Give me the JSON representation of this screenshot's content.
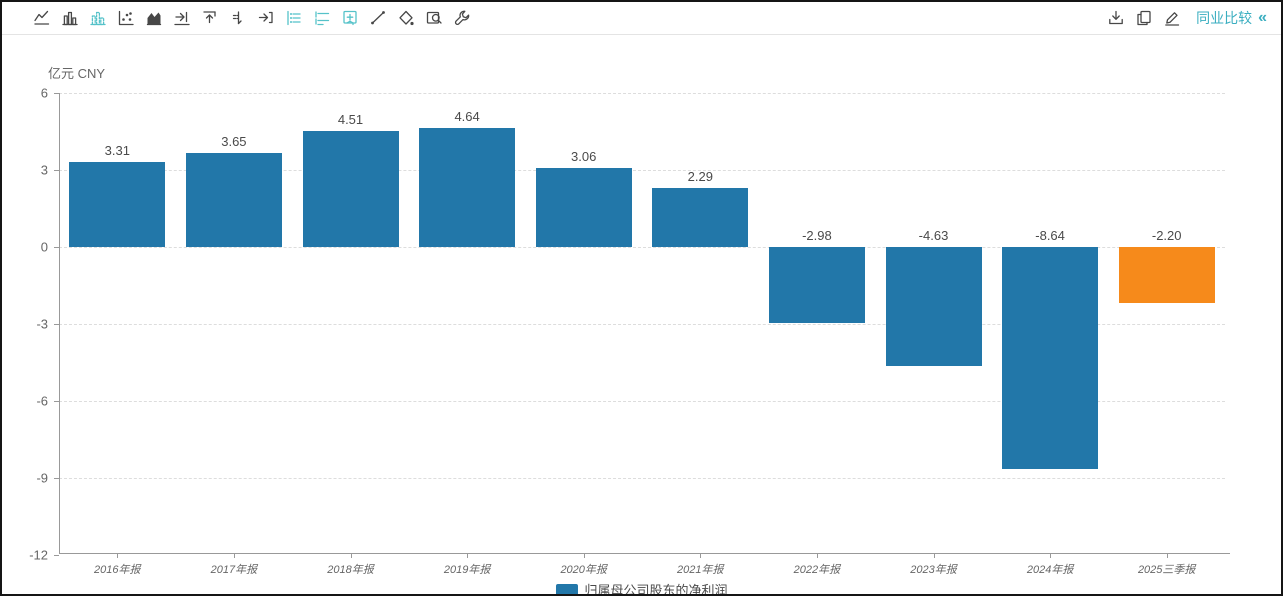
{
  "toolbar": {
    "left_icons": [
      {
        "name": "line-chart",
        "active": false
      },
      {
        "name": "column-chart",
        "active": false
      },
      {
        "name": "dashed-column-chart",
        "active": true
      },
      {
        "name": "scatter-chart",
        "active": false
      },
      {
        "name": "area-chart",
        "active": false
      },
      {
        "name": "shift-right",
        "active": false
      },
      {
        "name": "shift-top",
        "active": false
      },
      {
        "name": "axis-baseline",
        "active": false
      },
      {
        "name": "export-right",
        "active": false
      },
      {
        "name": "legend-list",
        "active": true
      },
      {
        "name": "horizontal-lines",
        "active": true
      },
      {
        "name": "add-flag",
        "active": true
      },
      {
        "name": "trend-line",
        "active": false
      },
      {
        "name": "fill-color",
        "active": false
      },
      {
        "name": "zoom-area",
        "active": false
      },
      {
        "name": "wrench",
        "active": false
      }
    ],
    "right_icons": [
      {
        "name": "download"
      },
      {
        "name": "copy"
      },
      {
        "name": "edit"
      }
    ],
    "peer_compare_label": "同业比较",
    "collapse_glyph": "«"
  },
  "chart": {
    "unit_label": "亿元 CNY",
    "legend": {
      "label": "归属母公司股东的净利润",
      "color": "#2277a9"
    }
  },
  "chart_data": {
    "type": "bar",
    "title": "归属母公司股东的净利润",
    "ylabel": "亿元 CNY",
    "categories": [
      "2016年报",
      "2017年报",
      "2018年报",
      "2019年报",
      "2020年报",
      "2021年报",
      "2022年报",
      "2023年报",
      "2024年报",
      "2025三季报"
    ],
    "values": [
      3.31,
      3.65,
      4.51,
      4.64,
      3.06,
      2.29,
      -2.98,
      -4.63,
      -8.64,
      -2.2
    ],
    "value_labels": [
      "3.31",
      "3.65",
      "4.51",
      "4.64",
      "3.06",
      "2.29",
      "-2.98",
      "-4.63",
      "-8.64",
      "-2.20"
    ],
    "point_colors": [
      "#2277a9",
      "#2277a9",
      "#2277a9",
      "#2277a9",
      "#2277a9",
      "#2277a9",
      "#2277a9",
      "#2277a9",
      "#2277a9",
      "#f68a1b"
    ],
    "ylim": [
      -12,
      6
    ],
    "yticks": [
      6,
      3,
      0,
      -3,
      -6,
      -9,
      -12
    ],
    "grid": "horizontal-dashed",
    "legend_position": "bottom-center"
  },
  "colors": {
    "bar": "#2277a9",
    "bar_highlight": "#f68a1b",
    "accent_teal": "#55c2c9",
    "link": "#3aaec0"
  }
}
